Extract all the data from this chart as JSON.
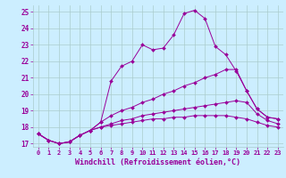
{
  "xlabel": "Windchill (Refroidissement éolien,°C)",
  "bg_color": "#cceeff",
  "grid_color": "#aacccc",
  "line_color": "#990099",
  "marker": "D",
  "xlim": [
    -0.5,
    23.5
  ],
  "ylim": [
    16.8,
    25.4
  ],
  "yticks": [
    17,
    18,
    19,
    20,
    21,
    22,
    23,
    24,
    25
  ],
  "xticks": [
    0,
    1,
    2,
    3,
    4,
    5,
    6,
    7,
    8,
    9,
    10,
    11,
    12,
    13,
    14,
    15,
    16,
    17,
    18,
    19,
    20,
    21,
    22,
    23
  ],
  "series": [
    [
      17.6,
      17.2,
      17.0,
      17.1,
      17.5,
      17.8,
      18.3,
      20.8,
      21.7,
      22.0,
      23.0,
      22.7,
      22.8,
      23.6,
      24.9,
      25.1,
      24.6,
      22.9,
      22.4,
      21.4,
      20.2,
      19.1,
      18.6,
      18.5
    ],
    [
      17.6,
      17.2,
      17.0,
      17.1,
      17.5,
      17.8,
      18.3,
      18.7,
      19.0,
      19.2,
      19.5,
      19.7,
      20.0,
      20.2,
      20.5,
      20.7,
      21.0,
      21.2,
      21.5,
      21.5,
      20.2,
      19.1,
      18.6,
      18.5
    ],
    [
      17.6,
      17.2,
      17.0,
      17.1,
      17.5,
      17.8,
      18.0,
      18.2,
      18.4,
      18.5,
      18.7,
      18.8,
      18.9,
      19.0,
      19.1,
      19.2,
      19.3,
      19.4,
      19.5,
      19.6,
      19.5,
      18.8,
      18.4,
      18.2
    ],
    [
      17.6,
      17.2,
      17.0,
      17.1,
      17.5,
      17.8,
      18.0,
      18.1,
      18.2,
      18.3,
      18.4,
      18.5,
      18.5,
      18.6,
      18.6,
      18.7,
      18.7,
      18.7,
      18.7,
      18.6,
      18.5,
      18.3,
      18.1,
      18.0
    ]
  ]
}
